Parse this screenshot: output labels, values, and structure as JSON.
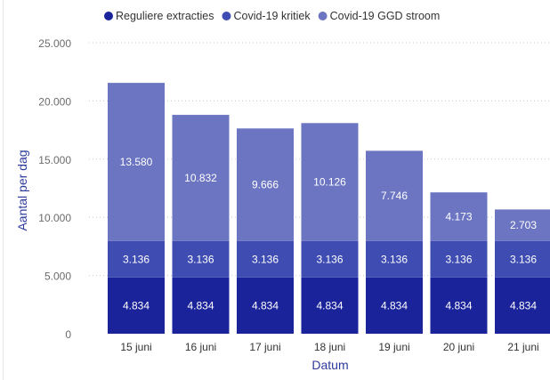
{
  "chart_data": {
    "type": "bar",
    "stacked": true,
    "title": "",
    "xlabel": "Datum",
    "ylabel": "Aantal per dag",
    "ylim": [
      0,
      25000
    ],
    "yticks": [
      0,
      5000,
      10000,
      15000,
      20000,
      25000
    ],
    "ytick_labels": [
      "0",
      "5.000",
      "10.000",
      "15.000",
      "20.000",
      "25.000"
    ],
    "legend_position": "top",
    "grid": true,
    "categories": [
      "15 juni",
      "16 juni",
      "17 juni",
      "18 juni",
      "19 juni",
      "20 juni",
      "21 juni"
    ],
    "series": [
      {
        "name": "Reguliere extracties",
        "color": "#1a239a",
        "values": [
          4834,
          4834,
          4834,
          4834,
          4834,
          4834,
          4834
        ],
        "labels": [
          "4.834",
          "4.834",
          "4.834",
          "4.834",
          "4.834",
          "4.834",
          "4.834"
        ]
      },
      {
        "name": "Covid-19 kritiek",
        "color": "#3f4db2",
        "values": [
          3136,
          3136,
          3136,
          3136,
          3136,
          3136,
          3136
        ],
        "labels": [
          "3.136",
          "3.136",
          "3.136",
          "3.136",
          "3.136",
          "3.136",
          "3.136"
        ]
      },
      {
        "name": "Covid-19 GGD stroom",
        "color": "#6b75c2",
        "values": [
          13580,
          10832,
          9666,
          10126,
          7746,
          4173,
          2703
        ],
        "labels": [
          "13.580",
          "10.832",
          "9.666",
          "10.126",
          "7.746",
          "4.173",
          "2.703"
        ]
      }
    ]
  }
}
